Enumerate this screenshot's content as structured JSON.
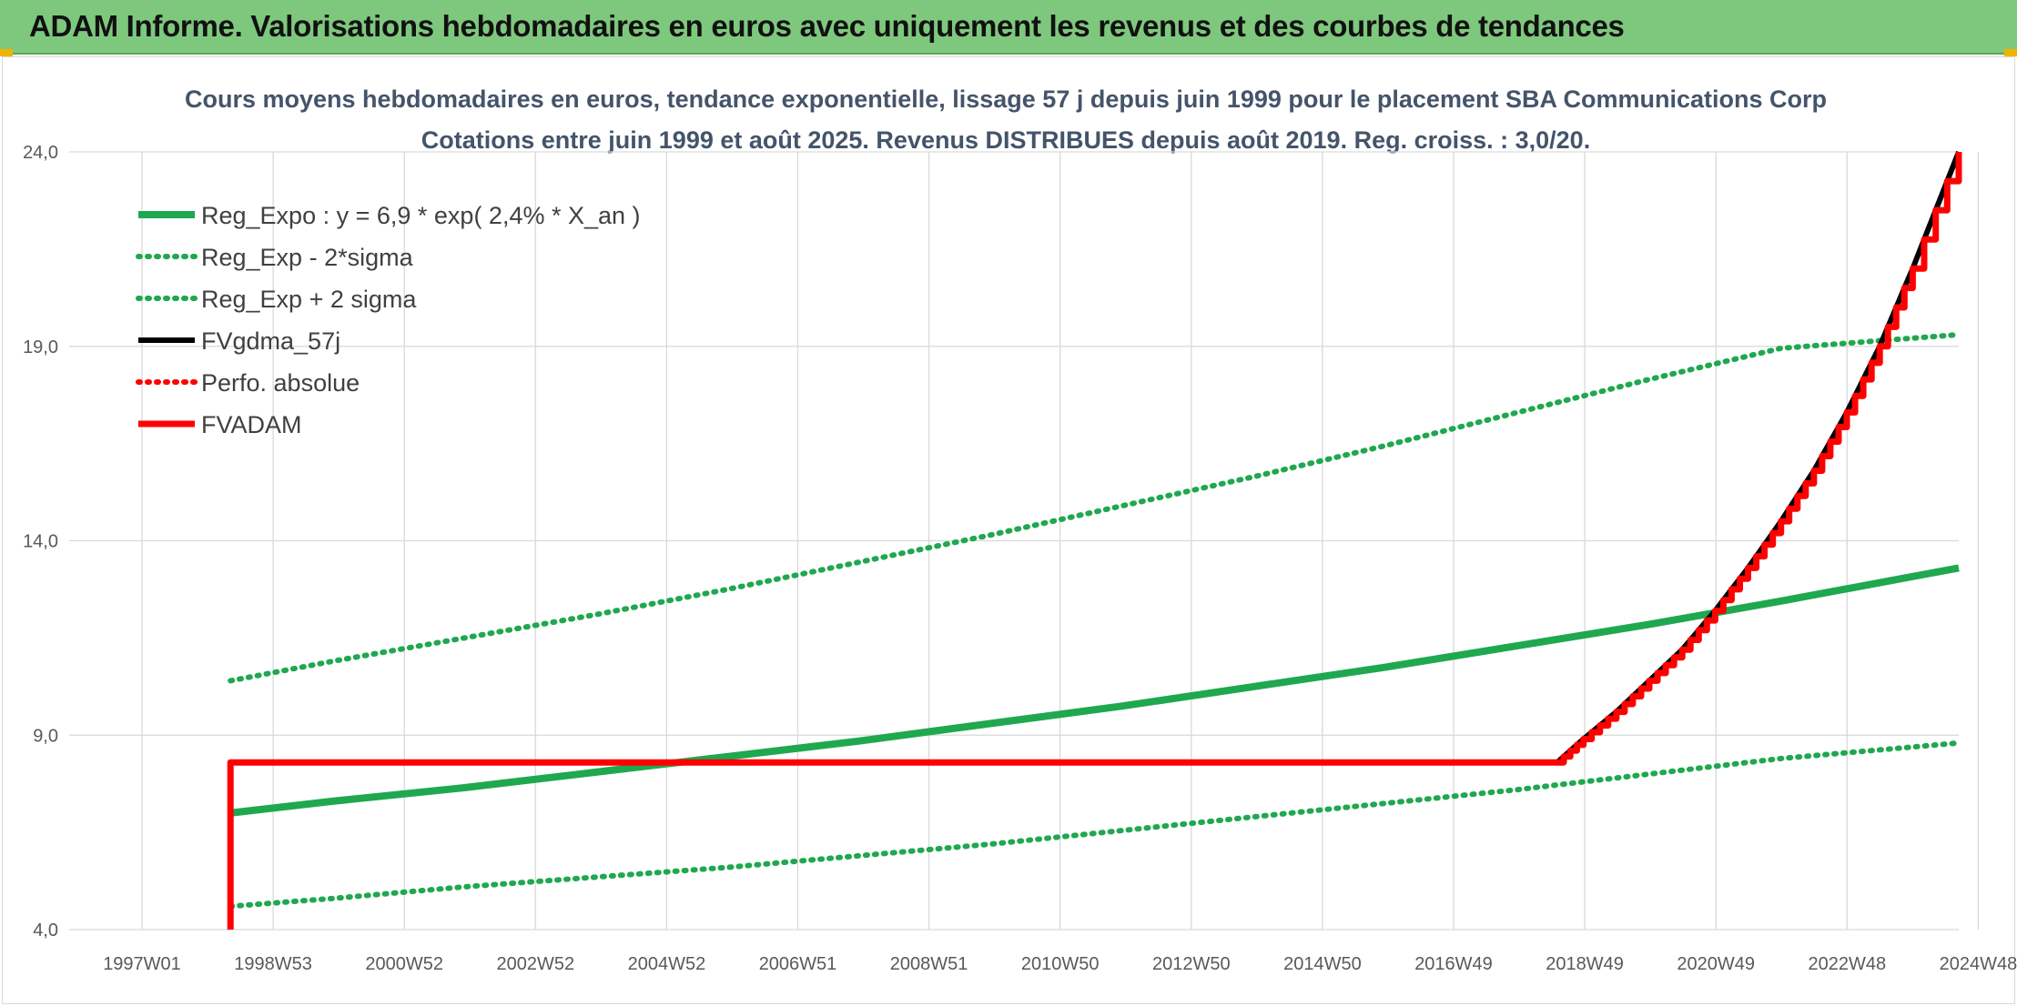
{
  "header": {
    "title": "ADAM Informe. Valorisations hebdomadaires en euros avec uniquement les revenus et des courbes de tendances"
  },
  "colors": {
    "banner": "#7ec87e",
    "reg_green": "#1fa84f",
    "red": "#ff0000",
    "black": "#000000",
    "grid": "#d9d9d9"
  },
  "chart_data": {
    "type": "line",
    "title": "Cours moyens hebdomadaires en euros, tendance exponentielle, lissage 57 j depuis juin 1999 pour le placement SBA Communications Corp",
    "subtitle": "Cotations entre juin 1999 et août 2025. Revenus DISTRIBUES depuis août 2019. Reg. croiss. : 3,0/20.",
    "xlabel": "",
    "ylabel": "",
    "x_ticks": [
      "1997W01",
      "1998W53",
      "2000W52",
      "2002W52",
      "2004W52",
      "2006W51",
      "2008W51",
      "2010W50",
      "2012W50",
      "2014W50",
      "2016W49",
      "2018W49",
      "2020W49",
      "2022W48",
      "2024W48"
    ],
    "y_ticks": [
      "4,0",
      "9,0",
      "14,0",
      "19,0",
      "24,0"
    ],
    "ylim": [
      4,
      24
    ],
    "xlim": [
      1997.0,
      2025.7
    ],
    "grid": true,
    "legend_position": "top-left",
    "series": [
      {
        "name": "Reg_Expo : y = 6,9 * exp( 2,4% *  X_an )",
        "style": "solid",
        "color": "#1fa84f",
        "x": [
          1999.45,
          2001,
          2003,
          2005,
          2007,
          2009,
          2011,
          2013,
          2015,
          2017,
          2019,
          2021,
          2023,
          2025.7
        ],
        "y": [
          7.0,
          7.3,
          7.65,
          8.05,
          8.45,
          8.85,
          9.3,
          9.75,
          10.25,
          10.75,
          11.3,
          11.85,
          12.45,
          13.3
        ]
      },
      {
        "name": "Reg_Exp - 2*sigma",
        "style": "dotted",
        "color": "#1fa84f",
        "x": [
          1999.45,
          2001,
          2003,
          2005,
          2007,
          2009,
          2011,
          2013,
          2015,
          2017,
          2019,
          2021,
          2023,
          2025.7
        ],
        "y": [
          4.6,
          4.8,
          5.1,
          5.35,
          5.6,
          5.9,
          6.2,
          6.55,
          6.9,
          7.25,
          7.6,
          8.0,
          8.4,
          8.8
        ]
      },
      {
        "name": "Reg_Exp + 2 sigma",
        "style": "dotted",
        "color": "#1fa84f",
        "x": [
          1999.45,
          2001,
          2003,
          2005,
          2007,
          2009,
          2011,
          2013,
          2015,
          2017,
          2019,
          2021,
          2023,
          2025.7
        ],
        "y": [
          10.4,
          10.9,
          11.5,
          12.1,
          12.75,
          13.45,
          14.15,
          14.9,
          15.65,
          16.45,
          17.3,
          18.15,
          18.95,
          19.3
        ]
      },
      {
        "name": "FVgdma_57j",
        "style": "solid",
        "color": "#000000",
        "x": [
          1999.45,
          1999.45,
          2019.6,
          2020.0,
          2020.5,
          2021.0,
          2021.5,
          2022.0,
          2022.5,
          2023.0,
          2023.5,
          2024.0,
          2024.5,
          2025.0,
          2025.7
        ],
        "y": [
          4.0,
          8.3,
          8.3,
          8.9,
          9.6,
          10.4,
          11.2,
          12.2,
          13.3,
          14.5,
          15.8,
          17.3,
          19.0,
          21.0,
          24.0
        ]
      },
      {
        "name": "Perfo. absolue",
        "style": "dotted",
        "color": "#ff0000",
        "x": [],
        "y": []
      },
      {
        "name": "FVADAM",
        "style": "solid",
        "color": "#ff0000",
        "x": [
          1999.45,
          1999.45,
          2019.6,
          2020.0,
          2020.5,
          2021.0,
          2021.5,
          2022.0,
          2022.5,
          2023.0,
          2023.5,
          2024.0,
          2024.5,
          2025.0,
          2025.7
        ],
        "y": [
          4.0,
          8.3,
          8.3,
          8.9,
          9.6,
          10.4,
          11.2,
          12.2,
          13.3,
          14.5,
          15.8,
          17.3,
          19.0,
          21.0,
          24.0
        ]
      }
    ]
  }
}
